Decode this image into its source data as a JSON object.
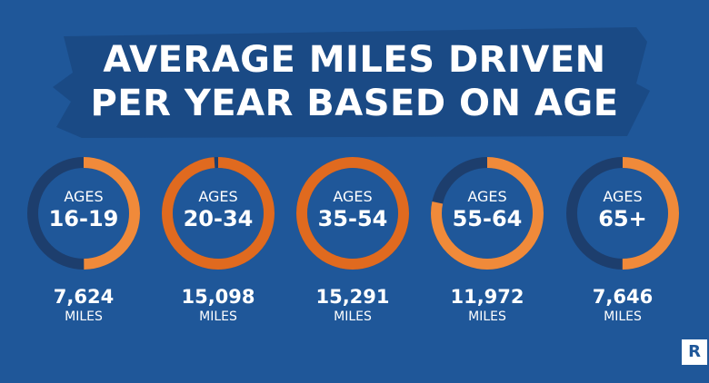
{
  "title_line1": "AVERAGE MILES DRIVEN",
  "title_line2": "PER YEAR BASED ON AGE",
  "logo_letter": "R",
  "colors": {
    "background": "#1f5799",
    "brush": "#1a4a85",
    "track": "#1d3e6d",
    "accent_light": "#f08a3a",
    "accent_dark": "#e06a1f"
  },
  "chart_data": {
    "type": "pie",
    "title": "AVERAGE MILES DRIVEN PER YEAR BASED ON AGE",
    "unit": "MILES",
    "max_value": 15291,
    "items": [
      {
        "ages_label": "AGES",
        "range": "16-19",
        "value": 7624,
        "value_label": "7,624",
        "unit": "MILES"
      },
      {
        "ages_label": "AGES",
        "range": "20-34",
        "value": 15098,
        "value_label": "15,098",
        "unit": "MILES"
      },
      {
        "ages_label": "AGES",
        "range": "35-54",
        "value": 15291,
        "value_label": "15,291",
        "unit": "MILES"
      },
      {
        "ages_label": "AGES",
        "range": "55-64",
        "value": 11972,
        "value_label": "11,972",
        "unit": "MILES"
      },
      {
        "ages_label": "AGES",
        "range": "65+",
        "value": 7646,
        "value_label": "7,646",
        "unit": "MILES"
      }
    ]
  }
}
